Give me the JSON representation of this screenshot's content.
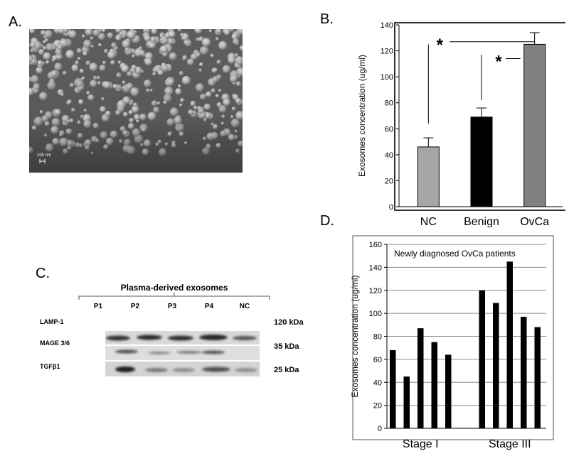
{
  "panels": {
    "a": "A.",
    "b": "B.",
    "c": "C.",
    "d": "D."
  },
  "micrograph": {
    "scale_bar_label": "100 nm"
  },
  "western_blot": {
    "title": "Plasma-derived exosomes",
    "lanes": [
      "P1",
      "P2",
      "P3",
      "P4",
      "NC"
    ],
    "markers": [
      {
        "name": "LAMP-1",
        "kda": "120 kDa"
      },
      {
        "name": "MAGE 3/6",
        "kda": "35 kDa"
      },
      {
        "name": "TGFβ1",
        "kda": "25 kDa"
      }
    ]
  },
  "chart_data": [
    {
      "type": "bar",
      "categories": [
        "NC",
        "Benign",
        "OvCa"
      ],
      "values": [
        46,
        69,
        125
      ],
      "error": [
        7,
        7,
        9
      ],
      "bar_colors": [
        "#a6a6a6",
        "#000000",
        "#808080"
      ],
      "ylabel": "Exosomes concentration  (ug/ml)",
      "ylim": [
        0,
        140
      ],
      "yticks": [
        0,
        20,
        40,
        60,
        80,
        100,
        120,
        140
      ],
      "grid": false,
      "significance": [
        {
          "from": "NC",
          "to": "OvCa",
          "label": "*"
        },
        {
          "from": "Benign",
          "to": "OvCa",
          "label": "*"
        }
      ]
    },
    {
      "type": "bar",
      "annotation": "Newly diagnosed OvCa patients",
      "groups": [
        {
          "label": "Stage I",
          "values": [
            68,
            45,
            87,
            75,
            64
          ]
        },
        {
          "label": "Stage III",
          "values": [
            120,
            109,
            145,
            97,
            88
          ]
        }
      ],
      "ylabel": "Exosomes concentration  (ug/ml)",
      "ylim": [
        0,
        160
      ],
      "yticks": [
        0,
        20,
        40,
        60,
        80,
        100,
        120,
        140,
        160
      ],
      "grid": true,
      "bar_color": "#000000"
    }
  ]
}
